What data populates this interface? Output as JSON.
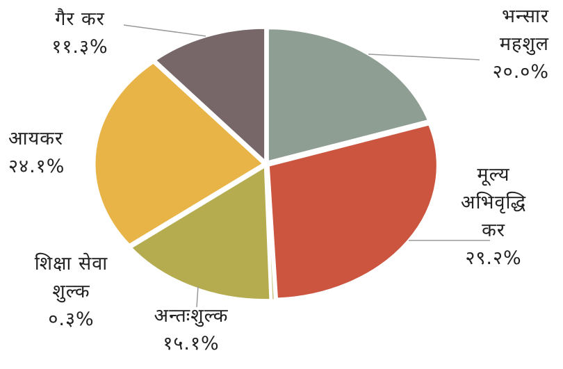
{
  "chart_data": {
    "type": "pie",
    "categories": [
      "भन्सार महशुल",
      "मूल्य अभिवृद्धि कर",
      "शिक्षा सेवा शुल्क",
      "अन्तःशुल्क",
      "आयकर",
      "गैर कर"
    ],
    "values": [
      20.0,
      29.2,
      0.3,
      15.1,
      24.1,
      11.3
    ],
    "value_labels": [
      "२०.०%",
      "२९.२%",
      "०.३%",
      "१५.१%",
      "२४.१%",
      "११.३%"
    ],
    "colors": [
      "#8f9e93",
      "#cc5540",
      "#c9c07a",
      "#b5ac4f",
      "#e8b447",
      "#776769"
    ]
  }
}
